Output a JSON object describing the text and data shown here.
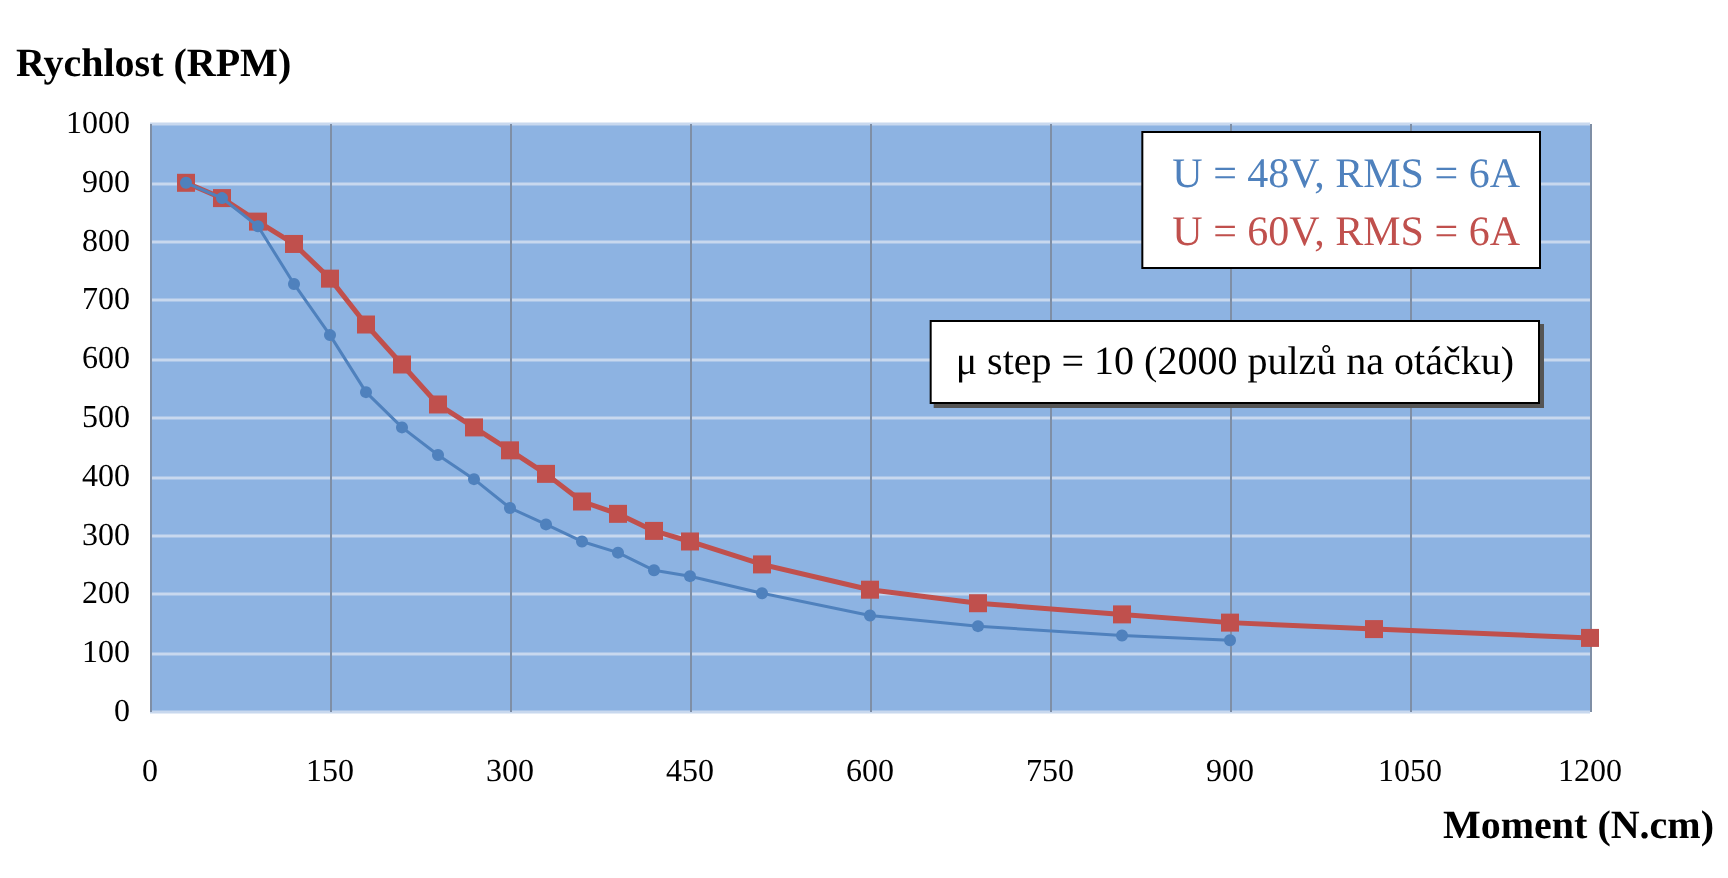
{
  "chart_data": {
    "type": "line",
    "ylabel": "Rychlost (RPM)",
    "xlabel": "Moment (N.cm)",
    "xlim": [
      0,
      1200
    ],
    "xticks": [
      0,
      150,
      300,
      450,
      600,
      750,
      900,
      1050,
      1200
    ],
    "ylim": [
      0,
      1000
    ],
    "yticks": [
      0,
      100,
      200,
      300,
      400,
      500,
      600,
      700,
      800,
      900,
      1000
    ],
    "grid": true,
    "legend": "top right",
    "line_style": "solid",
    "annotations": [
      "μ step = 10 (2000 pulzů na otáčku)"
    ],
    "series": [
      {
        "name": "U = 48V, RMS = 6A",
        "color": "#4f81bd",
        "marker": "circle",
        "x": [
          30,
          60,
          90,
          120,
          150,
          180,
          210,
          240,
          270,
          300,
          330,
          360,
          390,
          420,
          450,
          510,
          600,
          690,
          810,
          900
        ],
        "values": [
          900,
          874,
          826,
          728,
          641,
          544,
          484,
          437,
          396,
          347,
          319,
          290,
          271,
          241,
          231,
          202,
          164,
          146,
          130,
          122
        ]
      },
      {
        "name": "U = 60V, RMS = 6A",
        "color": "#c0504d",
        "marker": "square",
        "x": [
          30,
          60,
          90,
          120,
          150,
          180,
          210,
          240,
          270,
          300,
          330,
          360,
          390,
          420,
          450,
          510,
          600,
          690,
          810,
          900,
          1020,
          1200
        ],
        "values": [
          900,
          874,
          834,
          796,
          737,
          659,
          591,
          523,
          484,
          445,
          405,
          358,
          337,
          308,
          290,
          251,
          208,
          185,
          166,
          152,
          141,
          126
        ]
      }
    ]
  }
}
